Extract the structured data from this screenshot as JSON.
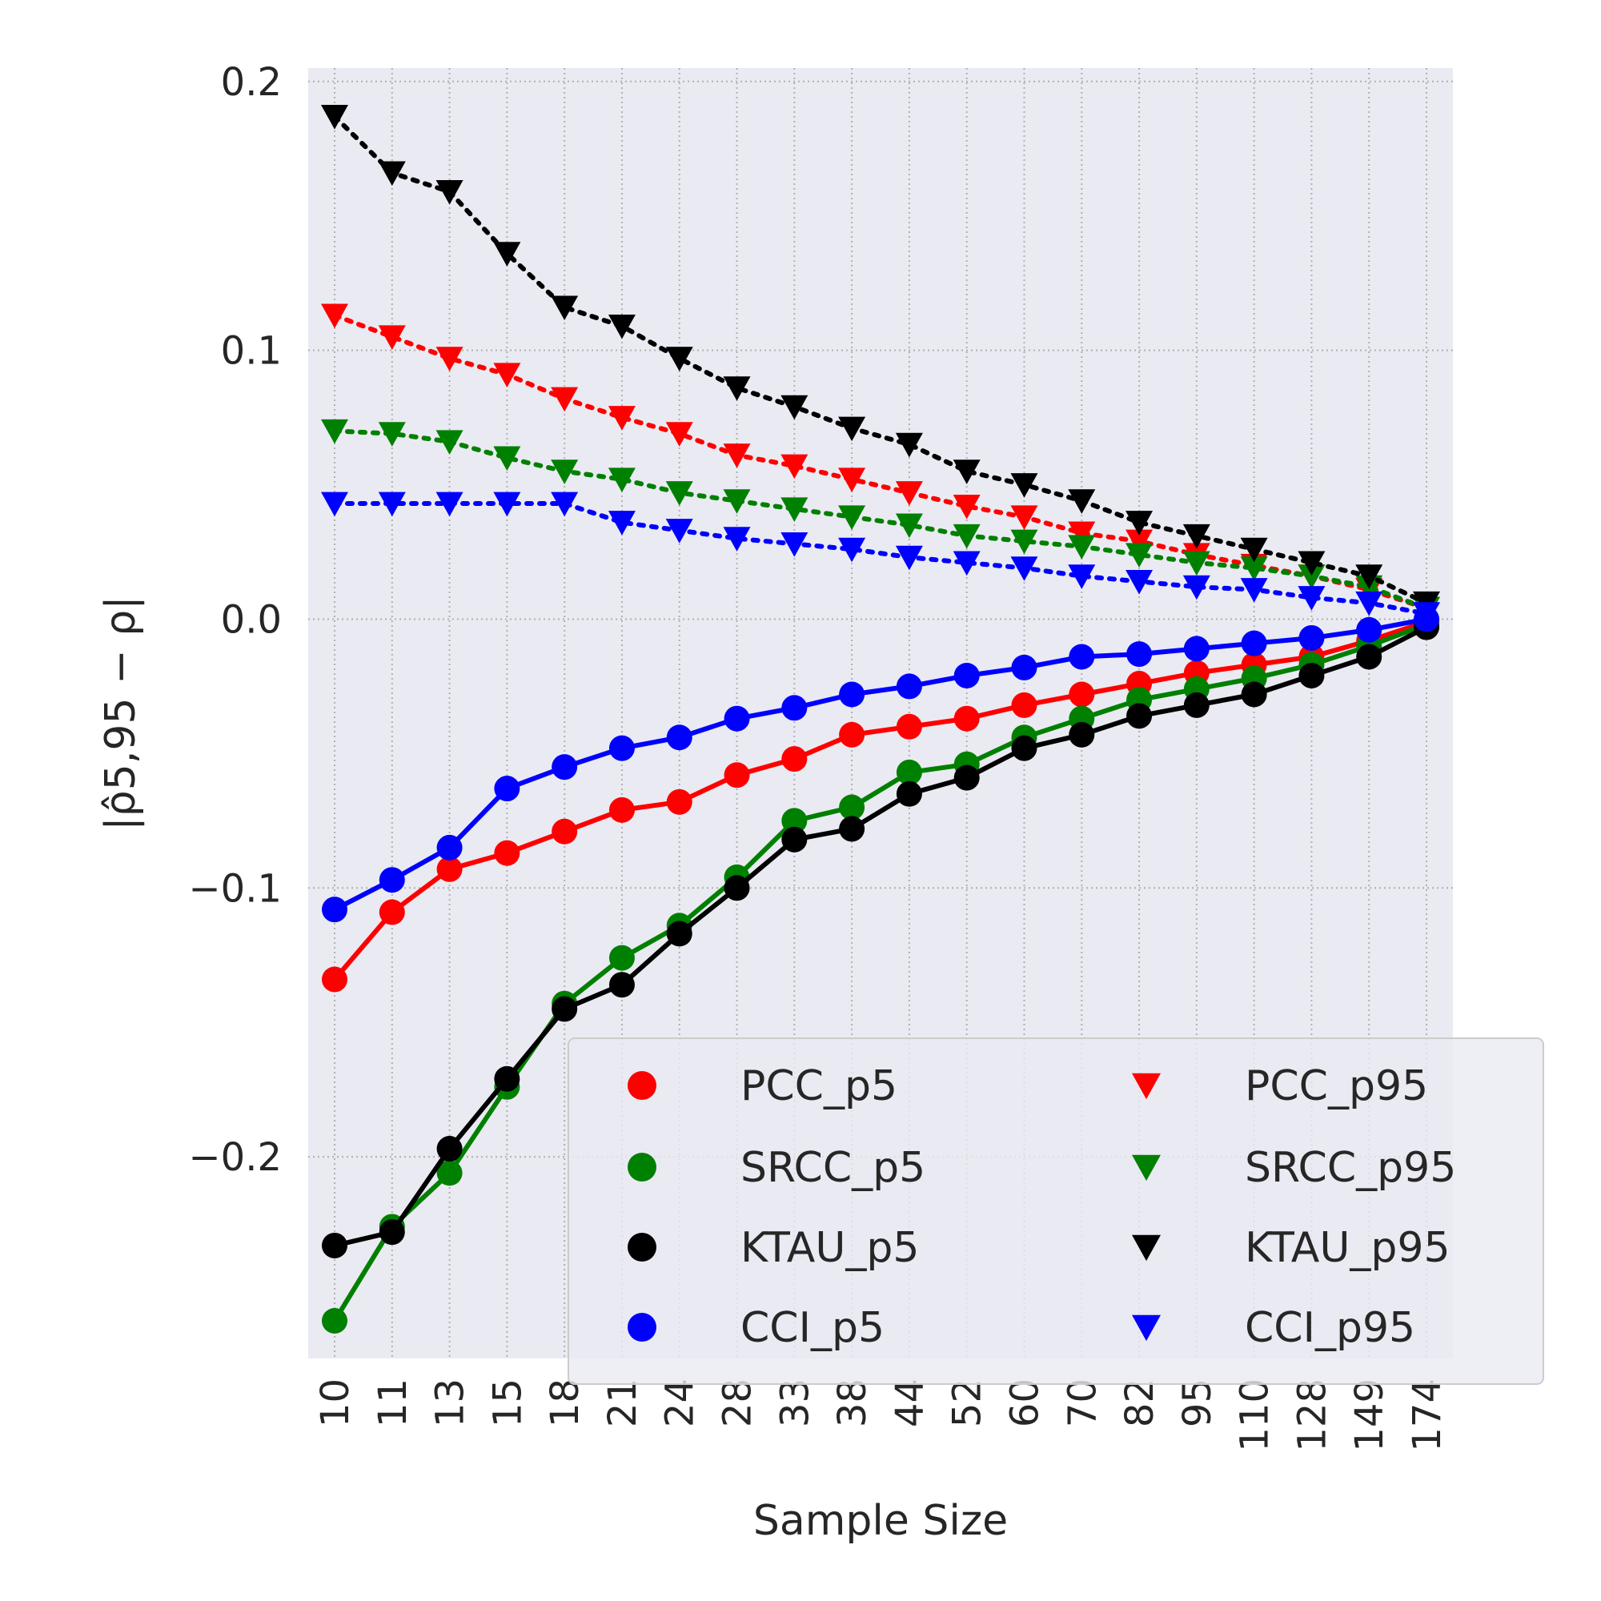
{
  "chart_data": {
    "type": "line",
    "xlabel": "Sample Size",
    "ylabel": "|ρ̂5,95 − ρ|",
    "ylim": [
      -0.275,
      0.205
    ],
    "yticks": [
      0.2,
      0.1,
      0.0,
      -0.1,
      -0.2
    ],
    "ytick_labels": [
      "0.2",
      "0.1",
      "0.0",
      "−0.1",
      "−0.2"
    ],
    "categories": [
      "10",
      "11",
      "13",
      "15",
      "18",
      "21",
      "24",
      "28",
      "33",
      "38",
      "44",
      "52",
      "60",
      "70",
      "82",
      "95",
      "110",
      "128",
      "149",
      "174"
    ],
    "grid": true,
    "legend_position": "lower-right",
    "legend_columns": 2,
    "series": [
      {
        "name": "PCC_p5",
        "color": "#ff0000",
        "marker": "circle",
        "linestyle": "solid",
        "values": [
          -0.134,
          -0.109,
          -0.093,
          -0.087,
          -0.079,
          -0.071,
          -0.068,
          -0.058,
          -0.052,
          -0.043,
          -0.04,
          -0.037,
          -0.032,
          -0.028,
          -0.024,
          -0.02,
          -0.017,
          -0.014,
          -0.008,
          -0.001
        ]
      },
      {
        "name": "SRCC_p5",
        "color": "#008000",
        "marker": "circle",
        "linestyle": "solid",
        "values": [
          -0.261,
          -0.226,
          -0.206,
          -0.174,
          -0.143,
          -0.126,
          -0.114,
          -0.096,
          -0.075,
          -0.07,
          -0.057,
          -0.054,
          -0.044,
          -0.037,
          -0.03,
          -0.026,
          -0.022,
          -0.017,
          -0.01,
          -0.002
        ]
      },
      {
        "name": "KTAU_p5",
        "color": "#000000",
        "marker": "circle",
        "linestyle": "solid",
        "values": [
          -0.233,
          -0.228,
          -0.197,
          -0.171,
          -0.145,
          -0.136,
          -0.117,
          -0.1,
          -0.082,
          -0.078,
          -0.065,
          -0.059,
          -0.048,
          -0.043,
          -0.036,
          -0.032,
          -0.028,
          -0.021,
          -0.014,
          -0.003
        ]
      },
      {
        "name": "CCI_p5",
        "color": "#0000ff",
        "marker": "circle",
        "linestyle": "solid",
        "values": [
          -0.108,
          -0.097,
          -0.085,
          -0.063,
          -0.055,
          -0.048,
          -0.044,
          -0.037,
          -0.033,
          -0.028,
          -0.025,
          -0.021,
          -0.018,
          -0.014,
          -0.013,
          -0.011,
          -0.009,
          -0.007,
          -0.004,
          0.0
        ]
      },
      {
        "name": "PCC_p95",
        "color": "#ff0000",
        "marker": "triangle-down",
        "linestyle": "dotted",
        "values": [
          0.113,
          0.105,
          0.097,
          0.091,
          0.082,
          0.075,
          0.069,
          0.061,
          0.057,
          0.052,
          0.047,
          0.042,
          0.038,
          0.032,
          0.029,
          0.024,
          0.02,
          0.016,
          0.011,
          0.004
        ]
      },
      {
        "name": "SRCC_p95",
        "color": "#008000",
        "marker": "triangle-down",
        "linestyle": "dotted",
        "values": [
          0.07,
          0.069,
          0.066,
          0.06,
          0.055,
          0.052,
          0.047,
          0.044,
          0.041,
          0.038,
          0.035,
          0.031,
          0.029,
          0.027,
          0.024,
          0.021,
          0.019,
          0.016,
          0.012,
          0.004
        ]
      },
      {
        "name": "KTAU_p95",
        "color": "#000000",
        "marker": "triangle-down",
        "linestyle": "dotted",
        "values": [
          0.187,
          0.166,
          0.159,
          0.136,
          0.116,
          0.109,
          0.097,
          0.086,
          0.079,
          0.071,
          0.065,
          0.055,
          0.05,
          0.044,
          0.036,
          0.031,
          0.026,
          0.021,
          0.016,
          0.006
        ]
      },
      {
        "name": "CCI_p95",
        "color": "#0000ff",
        "marker": "triangle-down",
        "linestyle": "dotted",
        "values": [
          0.043,
          0.043,
          0.043,
          0.043,
          0.043,
          0.036,
          0.033,
          0.03,
          0.028,
          0.026,
          0.023,
          0.021,
          0.019,
          0.016,
          0.014,
          0.012,
          0.011,
          0.008,
          0.006,
          0.002
        ]
      }
    ]
  }
}
